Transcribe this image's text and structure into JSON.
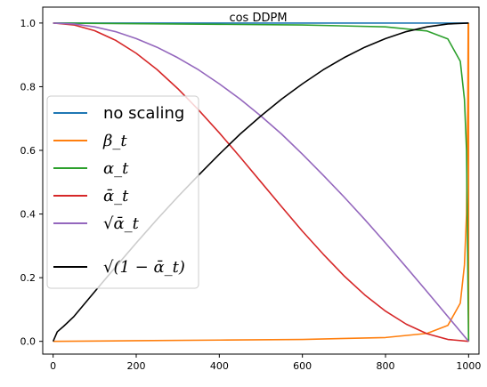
{
  "chart_data": {
    "type": "line",
    "title": "cos DDPM",
    "xlabel": "",
    "ylabel": "",
    "xlim": [
      -25,
      1025
    ],
    "ylim": [
      -0.04,
      1.05
    ],
    "xticks": [
      0,
      200,
      400,
      600,
      800,
      1000
    ],
    "xtick_labels": [
      "0",
      "200",
      "400",
      "600",
      "800",
      "1000"
    ],
    "yticks": [
      0.0,
      0.2,
      0.4,
      0.6,
      0.8,
      1.0
    ],
    "ytick_labels": [
      "0.0",
      "0.2",
      "0.4",
      "0.6",
      "0.8",
      "1.0"
    ],
    "grid": false,
    "legend_position": "center-left",
    "series": [
      {
        "name": "no scaling",
        "color": "#1f77b4",
        "x": [
          0,
          1000
        ],
        "y": [
          1.0,
          1.0
        ]
      },
      {
        "name": "β_t",
        "color": "#ff7f0e",
        "x": [
          0,
          200,
          400,
          600,
          800,
          900,
          950,
          980,
          990,
          995,
          998,
          999,
          1000,
          1000
        ],
        "y": [
          0.0,
          0.002,
          0.004,
          0.006,
          0.012,
          0.025,
          0.05,
          0.12,
          0.24,
          0.4,
          0.75,
          0.999,
          0.999,
          0.0
        ]
      },
      {
        "name": "α_t",
        "color": "#2ca02c",
        "x": [
          0,
          400,
          600,
          800,
          900,
          950,
          980,
          990,
          995,
          998,
          999,
          1000
        ],
        "y": [
          1.0,
          0.996,
          0.994,
          0.988,
          0.975,
          0.95,
          0.88,
          0.76,
          0.6,
          0.25,
          0.1,
          0.0
        ]
      },
      {
        "name": "ᾱ_t",
        "color": "#d62728",
        "x": [
          0,
          50,
          100,
          150,
          200,
          250,
          300,
          350,
          400,
          450,
          500,
          550,
          600,
          650,
          700,
          750,
          800,
          850,
          900,
          950,
          1000
        ],
        "y": [
          1.0,
          0.994,
          0.976,
          0.946,
          0.905,
          0.854,
          0.794,
          0.727,
          0.655,
          0.579,
          0.501,
          0.423,
          0.346,
          0.274,
          0.206,
          0.146,
          0.095,
          0.054,
          0.024,
          0.006,
          0.0
        ]
      },
      {
        "name": "√ᾱ_t",
        "color": "#9467bd",
        "x": [
          0,
          50,
          100,
          150,
          200,
          250,
          300,
          350,
          400,
          450,
          500,
          550,
          600,
          650,
          700,
          750,
          800,
          850,
          900,
          950,
          1000
        ],
        "y": [
          1.0,
          0.997,
          0.988,
          0.973,
          0.951,
          0.924,
          0.891,
          0.853,
          0.809,
          0.761,
          0.708,
          0.651,
          0.588,
          0.522,
          0.454,
          0.383,
          0.309,
          0.233,
          0.156,
          0.078,
          0.0
        ]
      },
      {
        "name": "√(1 − ᾱ_t)",
        "color": "#000000",
        "x": [
          0,
          10,
          25,
          50,
          100,
          150,
          200,
          250,
          300,
          350,
          400,
          450,
          500,
          550,
          600,
          650,
          700,
          750,
          800,
          850,
          900,
          950,
          1000
        ],
        "y": [
          0.0,
          0.03,
          0.047,
          0.078,
          0.156,
          0.233,
          0.309,
          0.383,
          0.454,
          0.522,
          0.588,
          0.651,
          0.708,
          0.761,
          0.809,
          0.853,
          0.891,
          0.924,
          0.951,
          0.973,
          0.988,
          0.997,
          1.0
        ]
      }
    ]
  }
}
